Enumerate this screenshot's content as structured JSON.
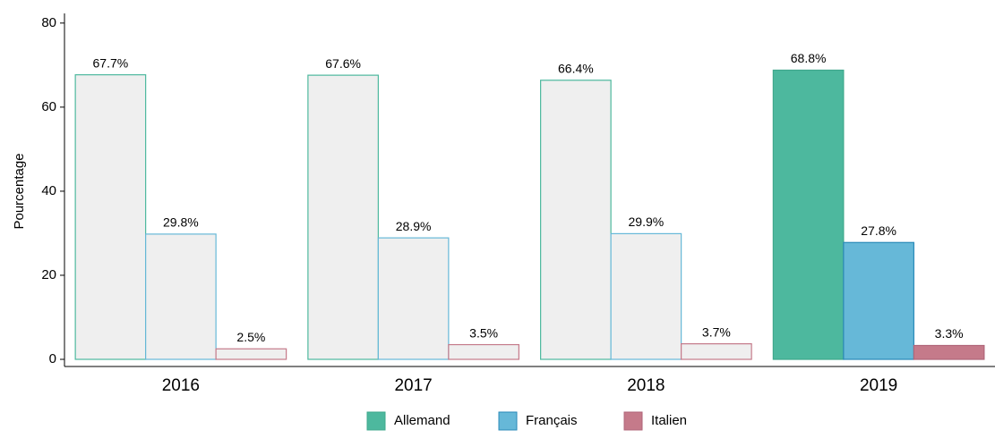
{
  "chart_data": {
    "type": "bar",
    "categories": [
      "2016",
      "2017",
      "2018",
      "2019"
    ],
    "y_label": "Pourcentage",
    "ylim": [
      -1.7,
      82.3
    ],
    "yticks": [
      0,
      20,
      40,
      60,
      80
    ],
    "grid": false,
    "legend": "bottom",
    "highlight": "2019",
    "muted_color": "#efefef",
    "series": [
      {
        "name": "Allemand",
        "color": "#4db89e",
        "stroke": "#3fa88c",
        "values": [
          67.7,
          67.6,
          66.4,
          68.8
        ],
        "value_labels": [
          "67.7%",
          "67.6%",
          "66.4%",
          "68.8%"
        ]
      },
      {
        "name": "Français",
        "color": "#66b8d8",
        "stroke": "#2a8ab8",
        "values": [
          29.8,
          28.9,
          29.9,
          27.8
        ],
        "value_labels": [
          "29.8%",
          "28.9%",
          "29.9%",
          "27.8%"
        ]
      },
      {
        "name": "Italien",
        "color": "#c57a8a",
        "stroke": "#b0667a",
        "values": [
          2.5,
          3.5,
          3.7,
          3.3
        ],
        "value_labels": [
          "2.5%",
          "3.5%",
          "3.7%",
          "3.3%"
        ]
      }
    ]
  }
}
